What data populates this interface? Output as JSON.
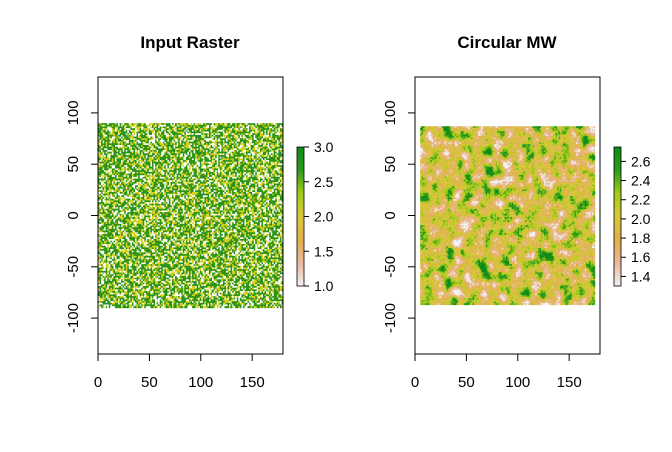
{
  "chart_data": [
    {
      "type": "heatmap",
      "title": "Input Raster",
      "xlabel": "",
      "ylabel": "",
      "xlim": [
        0,
        180
      ],
      "ylim": [
        -135,
        135
      ],
      "extent": {
        "x": [
          0,
          180
        ],
        "y": [
          -90,
          90
        ]
      },
      "grid": {
        "cols": 120,
        "rows": 110
      },
      "value_range": [
        1.0,
        3.0
      ],
      "discrete_values": [
        1,
        2,
        3
      ],
      "value_proportions": {
        "1": 0.22,
        "2": 0.3,
        "3": 0.48
      },
      "x_ticks": [
        "0",
        "50",
        "100",
        "150"
      ],
      "x_tick_values": [
        0,
        50,
        100,
        150
      ],
      "y_ticks": [
        "-100",
        "-50",
        "0",
        "50",
        "100"
      ],
      "y_tick_values": [
        -100,
        -50,
        0,
        50,
        100
      ],
      "legend": {
        "placement": "right",
        "labels": [
          "1.0",
          "1.5",
          "2.0",
          "2.5",
          "3.0"
        ],
        "values": [
          1.0,
          1.5,
          2.0,
          2.5,
          3.0
        ]
      },
      "grid_lines": false
    },
    {
      "type": "heatmap",
      "title": "Circular MW",
      "xlabel": "",
      "ylabel": "",
      "xlim": [
        0,
        180
      ],
      "ylim": [
        -135,
        135
      ],
      "extent": {
        "x": [
          5,
          175
        ],
        "y": [
          -87,
          87
        ]
      },
      "grid": {
        "cols": 120,
        "rows": 110
      },
      "value_range": [
        1.3,
        2.75
      ],
      "x_ticks": [
        "0",
        "50",
        "100",
        "150"
      ],
      "x_tick_values": [
        0,
        50,
        100,
        150
      ],
      "y_ticks": [
        "-100",
        "-50",
        "0",
        "50",
        "100"
      ],
      "y_tick_values": [
        -100,
        -50,
        0,
        50,
        100
      ],
      "legend": {
        "placement": "right",
        "labels": [
          "1.4",
          "1.6",
          "1.8",
          "2.0",
          "2.2",
          "2.4",
          "2.6"
        ],
        "values": [
          1.4,
          1.6,
          1.8,
          2.0,
          2.2,
          2.4,
          2.6
        ]
      },
      "grid_lines": false
    }
  ],
  "colors": {
    "ramp": [
      "#f2f2f2",
      "#eab89c",
      "#e0b04d",
      "#d9c93a",
      "#a3cc1a",
      "#2e9b1c",
      "#0d8a16"
    ],
    "discrete": {
      "1": "#ffffff",
      "2": "#d4d020",
      "3": "#2a9418"
    }
  }
}
